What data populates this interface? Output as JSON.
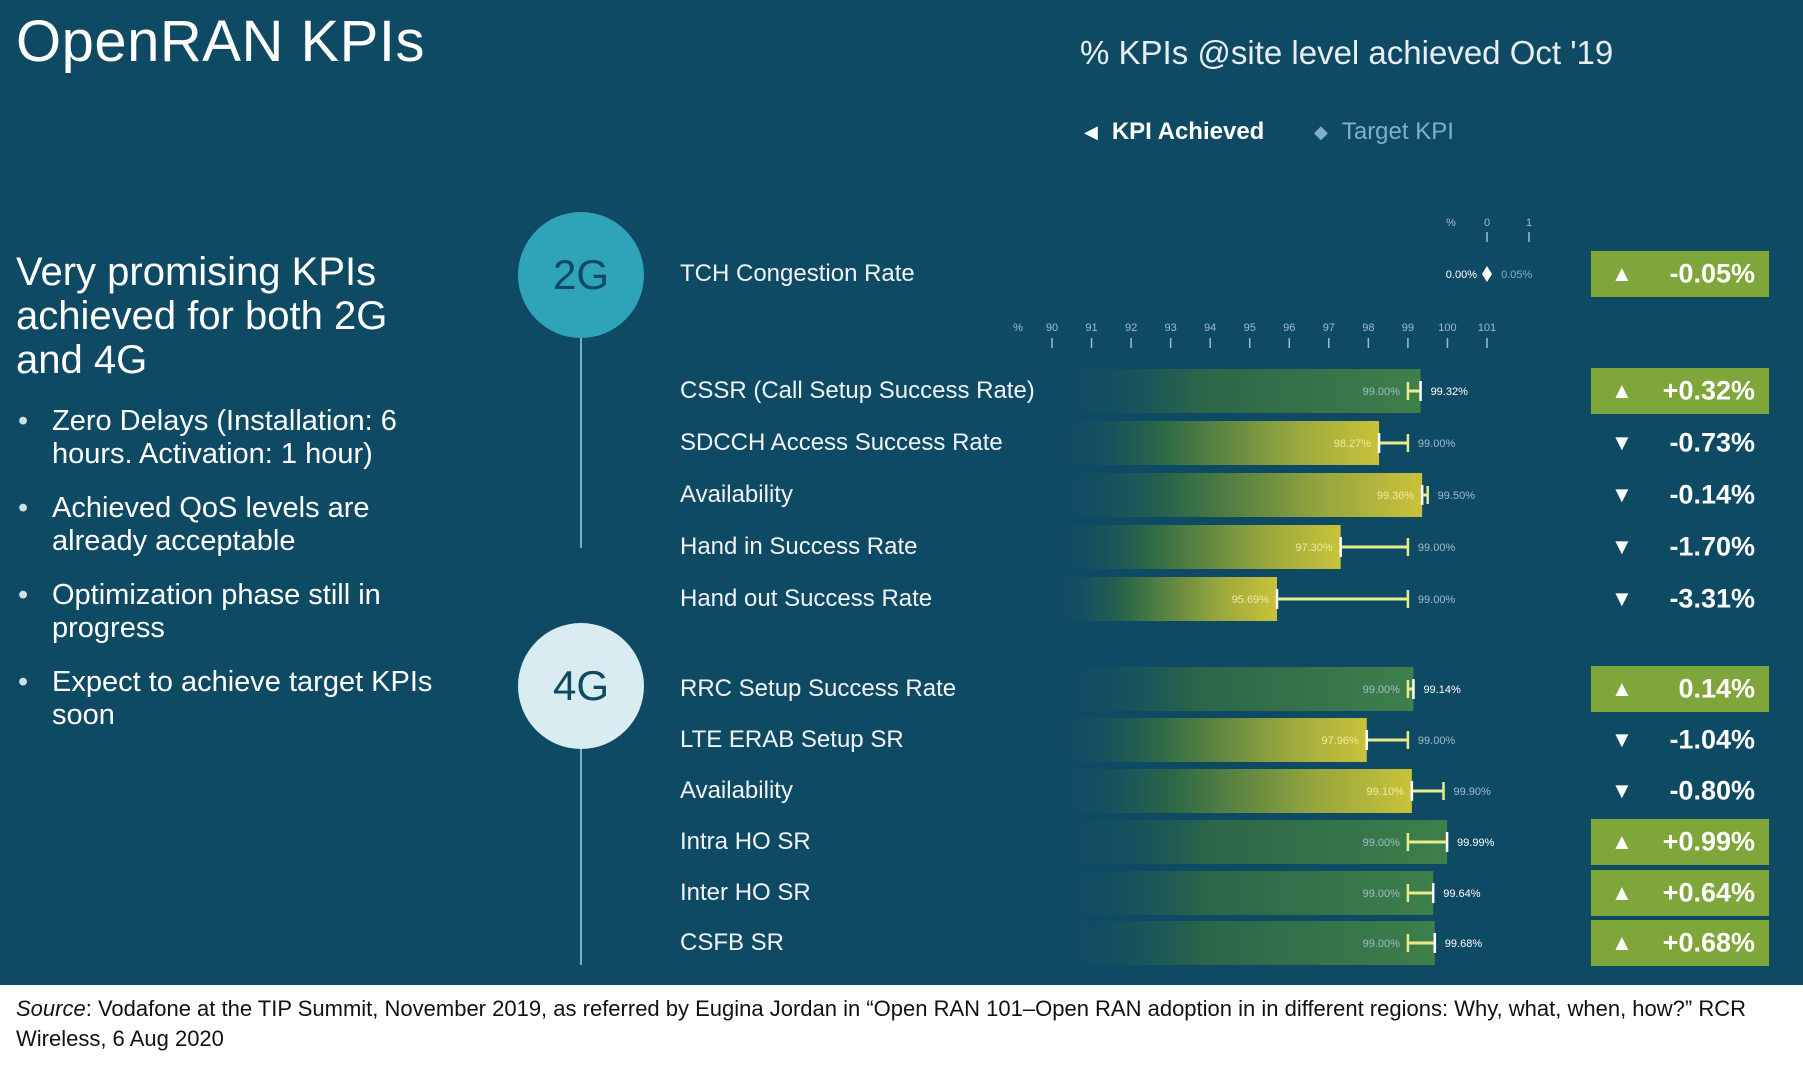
{
  "title": "OpenRAN KPIs",
  "headline": "Very promising KPIs achieved for both 2G and 4G",
  "bullets": [
    "Zero Delays (Installation: 6 hours. Activation: 1 hour)",
    "Achieved QoS levels are already acceptable",
    "Optimization phase still in progress",
    "Expect to achieve target KPIs soon"
  ],
  "technologies": {
    "g2": "2G",
    "g4": "4G"
  },
  "source": {
    "label": "Source",
    "text": ": Vodafone at the TIP Summit, November 2019, as referred by Eugina Jordan in “Open RAN 101–Open RAN adoption in in different regions: Why, what, when, how?” RCR Wireless, 6 Aug 2020"
  },
  "colors": {
    "background": "#0f4a64",
    "badge_up": "#7fa63a",
    "bar_green": "#2f6a46",
    "bar_yellow": "#c9c23a",
    "target_line": "#e9ea8a",
    "circle_2g": "#2fa3b8",
    "circle_4g": "#d8ecf1"
  },
  "chart_data": {
    "type": "bar",
    "title": "% KPIs @site level achieved Oct '19",
    "legend": [
      "KPI Achieved",
      "Target KPI"
    ],
    "top_axis": {
      "label": "%",
      "ticks": [
        "0",
        "1"
      ],
      "range": [
        0,
        1
      ]
    },
    "main_axis": {
      "label": "%",
      "ticks": [
        "90",
        "91",
        "92",
        "93",
        "94",
        "95",
        "96",
        "97",
        "98",
        "99",
        "100",
        "101"
      ],
      "range": [
        90,
        101
      ]
    },
    "top_kpi": {
      "group": "2G",
      "label": "TCH Congestion Rate",
      "achieved": 0.0,
      "target": 0.05,
      "achieved_label": "0.00%",
      "target_label": "0.05%",
      "change": "-0.05%",
      "direction": "up"
    },
    "kpis": [
      {
        "group": "2G",
        "label": "CSSR (Call Setup Success Rate)",
        "achieved": 99.32,
        "target": 99.0,
        "achieved_label": "99.32%",
        "target_label": "99.00%",
        "change": "+0.32%",
        "direction": "up"
      },
      {
        "group": "2G",
        "label": "SDCCH Access Success Rate",
        "achieved": 98.27,
        "target": 99.0,
        "achieved_label": "98.27%",
        "target_label": "99.00%",
        "change": "-0.73%",
        "direction": "down"
      },
      {
        "group": "2G",
        "label": "Availability",
        "achieved": 99.36,
        "target": 99.5,
        "achieved_label": "99.36%",
        "target_label": "99.50%",
        "change": "-0.14%",
        "direction": "down"
      },
      {
        "group": "2G",
        "label": "Hand in Success Rate",
        "achieved": 97.3,
        "target": 99.0,
        "achieved_label": "97.30%",
        "target_label": "99.00%",
        "change": "-1.70%",
        "direction": "down"
      },
      {
        "group": "2G",
        "label": "Hand out Success Rate",
        "achieved": 95.69,
        "target": 99.0,
        "achieved_label": "95.69%",
        "target_label": "99.00%",
        "change": "-3.31%",
        "direction": "down"
      },
      {
        "group": "4G",
        "label": "RRC Setup Success Rate",
        "achieved": 99.14,
        "target": 99.0,
        "achieved_label": "99.14%",
        "target_label": "99.00%",
        "change": "0.14%",
        "direction": "up"
      },
      {
        "group": "4G",
        "label": "LTE ERAB Setup SR",
        "achieved": 97.96,
        "target": 99.0,
        "achieved_label": "97.96%",
        "target_label": "99.00%",
        "change": "-1.04%",
        "direction": "down"
      },
      {
        "group": "4G",
        "label": "Availability",
        "achieved": 99.1,
        "target": 99.9,
        "achieved_label": "99.10%",
        "target_label": "99.90%",
        "change": "-0.80%",
        "direction": "down"
      },
      {
        "group": "4G",
        "label": "Intra HO SR",
        "achieved": 99.99,
        "target": 99.0,
        "achieved_label": "99.99%",
        "target_label": "99.00%",
        "change": "+0.99%",
        "direction": "up"
      },
      {
        "group": "4G",
        "label": "Inter HO SR",
        "achieved": 99.64,
        "target": 99.0,
        "achieved_label": "99.64%",
        "target_label": "99.00%",
        "change": "+0.64%",
        "direction": "up"
      },
      {
        "group": "4G",
        "label": "CSFB SR",
        "achieved": 99.68,
        "target": 99.0,
        "achieved_label": "99.68%",
        "target_label": "99.00%",
        "change": "+0.68%",
        "direction": "up"
      }
    ]
  }
}
